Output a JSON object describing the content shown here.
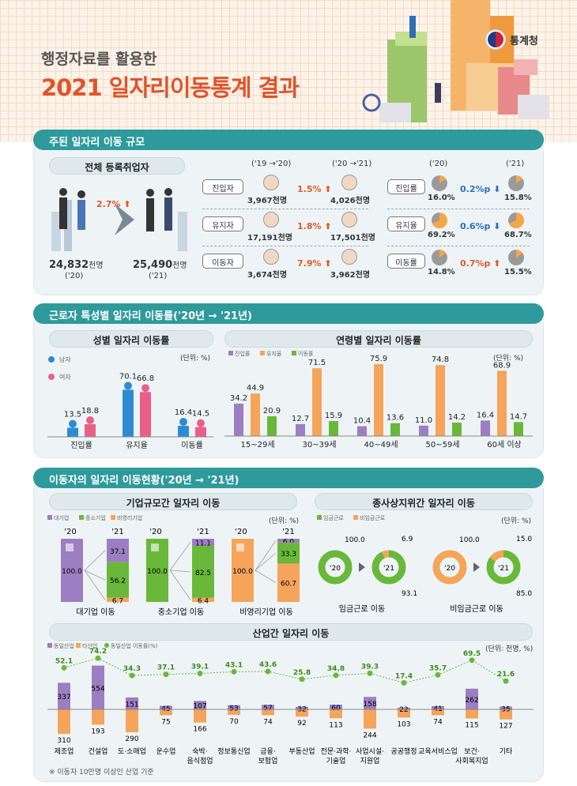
{
  "header": {
    "subtitle": "행정자료를 활용한",
    "title": "2021 일자리이동통계 결과",
    "logo": "통계청"
  },
  "sec1": {
    "band": "주된 일자리 이동 규모",
    "registered": {
      "label": "전체 등록취업자",
      "change": "2.7%",
      "val20": "24,832",
      "unit": "천명",
      "yr20": "('20)",
      "val21": "25,490",
      "yr21": "('21)"
    },
    "col20": "('19 →'20)",
    "col21": "('20 →'21)",
    "rcol20": "('20)",
    "rcol21": "('21)",
    "rows": [
      {
        "label": "진입자",
        "v1": "3,967",
        "pct": "1.5%",
        "v2": "4,026",
        "rlabel": "진입률",
        "r1": "16.0%",
        "rd": "0.2%p",
        "r2": "15.8%",
        "dir": "down"
      },
      {
        "label": "유지자",
        "v1": "17,191",
        "pct": "1.8%",
        "v2": "17,501",
        "rlabel": "유지율",
        "r1": "69.2%",
        "rd": "0.6%p",
        "r2": "68.7%",
        "dir": "down"
      },
      {
        "label": "이동자",
        "v1": "3,674",
        "pct": "7.9%",
        "v2": "3,962",
        "rlabel": "이동률",
        "r1": "14.8%",
        "rd": "0.7%p",
        "r2": "15.5%",
        "dir": "up"
      }
    ],
    "unit": "천명"
  },
  "sec2": {
    "band": "근로자 특성별 일자리 이동률('20년 → '21년)",
    "gender_title": "성별 일자리 이동률",
    "age_title": "연령별 일자리 이동률",
    "unit": "(단위: %)"
  },
  "sec3": {
    "band": "이동자의 일자리 이동현황('20년 → '21년)",
    "firm_title": "기업규모간 일자리 이동",
    "status_title": "종사상지위간 일자리 이동",
    "industry_title": "산업간 일자리 이동",
    "unit": "(단위: %)",
    "unit2": "(단위: 천명, %)",
    "note": "※ 이동자 10만명 이상인 산업 기준",
    "yr20": "'20",
    "yr21": "'21"
  },
  "chart_data": [
    {
      "type": "bar",
      "id": "gender",
      "legend": [
        "남자",
        "여자"
      ],
      "categories": [
        "진입률",
        "유지율",
        "이동률"
      ],
      "series": [
        {
          "name": "남자",
          "values": [
            13.5,
            70.1,
            16.4
          ]
        },
        {
          "name": "여자",
          "values": [
            18.8,
            66.8,
            14.5
          ]
        }
      ],
      "ylim": [
        0,
        80
      ],
      "colors": [
        "#2e8bd1",
        "#ea5f8a"
      ]
    },
    {
      "type": "bar",
      "id": "age",
      "categories": [
        "15~29세",
        "30~39세",
        "40~49세",
        "50~59세",
        "60세 이상"
      ],
      "series": [
        {
          "name": "진입률",
          "values": [
            34.2,
            12.7,
            10.4,
            11.0,
            16.4
          ]
        },
        {
          "name": "유지율",
          "values": [
            44.9,
            71.5,
            75.9,
            74.8,
            68.9
          ]
        },
        {
          "name": "이동률",
          "values": [
            20.9,
            15.9,
            13.6,
            14.2,
            14.7
          ]
        }
      ],
      "ylim": [
        0,
        80
      ],
      "colors": [
        "#9b7fc2",
        "#f5a45a",
        "#69b83a"
      ]
    },
    {
      "type": "bar",
      "id": "firm",
      "legend": [
        "대기업",
        "중소기업",
        "비영리기업"
      ],
      "groups": [
        {
          "name": "대기업 이동",
          "from": 100.0,
          "to": [
            {
              "label": "대기업",
              "value": 37.1
            },
            {
              "label": "중소기업",
              "value": 56.2
            },
            {
              "label": "비영리기업",
              "value": 6.7
            }
          ]
        },
        {
          "name": "중소기업 이동",
          "from": 100.0,
          "to": [
            {
              "label": "대기업",
              "value": 11.1
            },
            {
              "label": "중소기업",
              "value": 82.5
            },
            {
              "label": "비영리기업",
              "value": 6.4
            }
          ]
        },
        {
          "name": "비영리기업 이동",
          "from": 100.0,
          "to": [
            {
              "label": "대기업",
              "value": 6.0
            },
            {
              "label": "중소기업",
              "value": 33.3
            },
            {
              "label": "비영리기업",
              "value": 60.7
            }
          ]
        }
      ],
      "colors": [
        "#9b7fc2",
        "#69b83a",
        "#f5a45a"
      ]
    },
    {
      "type": "pie",
      "id": "status",
      "legend": [
        "임금근로",
        "비임금근로"
      ],
      "groups": [
        {
          "name": "임금근로 이동",
          "from": 100.0,
          "to": [
            {
              "label": "임금근로",
              "value": 93.1
            },
            {
              "label": "비임금근로",
              "value": 6.9
            }
          ]
        },
        {
          "name": "비임금근로 이동",
          "from": 100.0,
          "to": [
            {
              "label": "임금근로",
              "value": 85.0
            },
            {
              "label": "비임금근로",
              "value": 15.0
            }
          ]
        }
      ],
      "colors": [
        "#69b83a",
        "#f5a45a"
      ]
    },
    {
      "type": "bar",
      "id": "industry",
      "legend": [
        "동일산업",
        "타산업",
        "동일산업 이동률(%)"
      ],
      "categories": [
        "제조업",
        "건설업",
        "도·소매업",
        "운수업",
        "숙박·음식점업",
        "정보통신업",
        "금융·보험업",
        "부동산업",
        "전문·과학·기술업",
        "사업시설·지원업",
        "공공행정",
        "교육서비스업",
        "보건·사회복지업",
        "기타"
      ],
      "series": [
        {
          "name": "동일산업",
          "values": [
            337,
            554,
            151,
            45,
            107,
            53,
            57,
            32,
            60,
            158,
            22,
            41,
            262,
            35
          ]
        },
        {
          "name": "타산업",
          "values": [
            310,
            193,
            290,
            75,
            166,
            70,
            74,
            92,
            113,
            244,
            103,
            74,
            115,
            127
          ]
        },
        {
          "name": "동일산업 이동률(%)",
          "values": [
            52.1,
            74.2,
            34.3,
            37.1,
            39.1,
            43.1,
            43.6,
            25.8,
            34.8,
            39.3,
            17.4,
            35.7,
            69.5,
            21.6
          ]
        }
      ],
      "colors": [
        "#9b7fc2",
        "#f5a45a",
        "#69b83a"
      ]
    }
  ]
}
